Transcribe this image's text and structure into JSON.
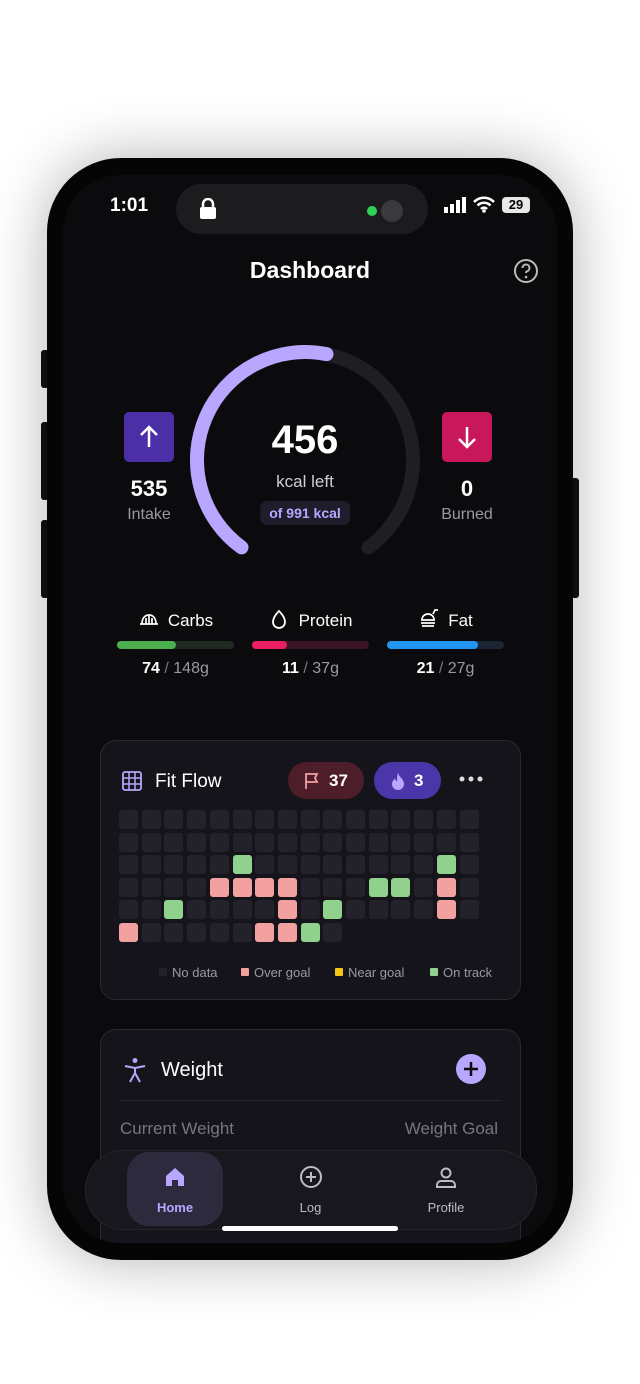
{
  "status_bar": {
    "time": "1:01",
    "battery": "29"
  },
  "header": {
    "title": "Dashboard"
  },
  "calories": {
    "remaining": 456,
    "remaining_label": "kcal left",
    "goal_prefix": "of",
    "goal": 991,
    "goal_unit": "kcal",
    "intake": 535,
    "intake_label": "Intake",
    "burned": 0,
    "burned_label": "Burned"
  },
  "macros": [
    {
      "name": "Carbs",
      "value": 74,
      "separator": "/",
      "goal": 148,
      "unit": "g",
      "color": "#4caf50",
      "track": "#1f2a22"
    },
    {
      "name": "Protein",
      "value": 11,
      "separator": "/",
      "goal": 37,
      "unit": "g",
      "color": "#e91e63",
      "track": "#3a1424"
    },
    {
      "name": "Fat",
      "value": 21,
      "separator": "/",
      "goal": 27,
      "unit": "g",
      "color": "#2196f3",
      "track": "#1c2633"
    }
  ],
  "fit_flow": {
    "title": "Fit Flow",
    "goal_days": 37,
    "streak": 3,
    "grid": [
      "nnnnnnnnnnnnnnnn",
      "nnnnnnnnnnnnnnnn",
      "nnnnntnnnnnnnntn",
      "nnnnoooonnnttnon",
      "nntnnnnontnnnnon",
      "onnnnnootn"
    ],
    "legend": [
      {
        "key": "n",
        "label": "No data",
        "color": "#23222a"
      },
      {
        "key": "o",
        "label": "Over goal",
        "color": "#f2a0a0"
      },
      {
        "key": "e",
        "label": "Near goal",
        "color": "#f5c518"
      },
      {
        "key": "t",
        "label": "On track",
        "color": "#8fd18d"
      }
    ]
  },
  "weight": {
    "title": "Weight",
    "current_label": "Current Weight",
    "goal_label": "Weight Goal"
  },
  "nav": [
    {
      "label": "Home",
      "active": true
    },
    {
      "label": "Log",
      "active": false
    },
    {
      "label": "Profile",
      "active": false
    }
  ]
}
